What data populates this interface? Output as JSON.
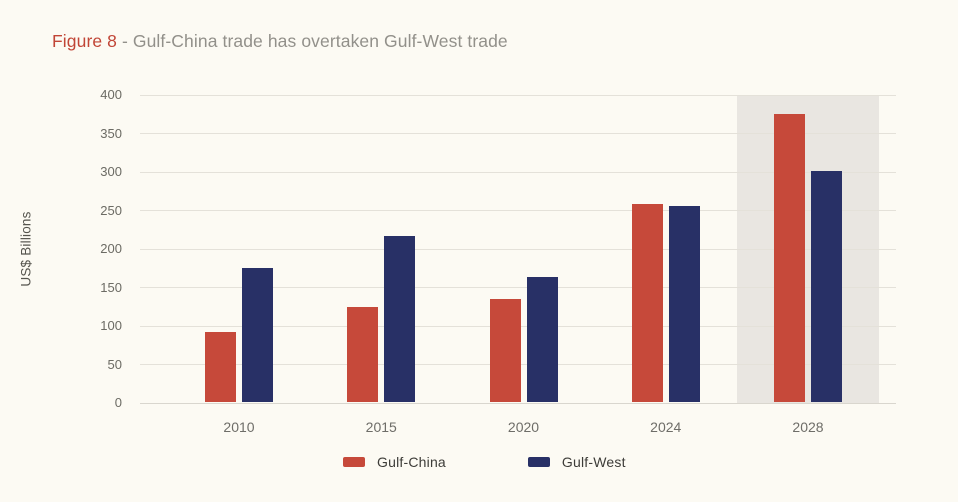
{
  "title": {
    "figure_label": "Figure 8",
    "text": "- Gulf-China trade has overtaken Gulf-West trade"
  },
  "chart_data": {
    "type": "bar",
    "categories": [
      "2010",
      "2015",
      "2020",
      "2024",
      "2028"
    ],
    "series": [
      {
        "name": "Gulf-China",
        "color": "#c6493a",
        "values": [
          92,
          125,
          135,
          258,
          375
        ]
      },
      {
        "name": "Gulf-West",
        "color": "#283066",
        "values": [
          175,
          217,
          164,
          256,
          301
        ]
      }
    ],
    "ylabel": "US$ Billions",
    "ylim": [
      0,
      400
    ],
    "yticks": [
      0,
      50,
      100,
      150,
      200,
      250,
      300,
      350,
      400
    ],
    "grid": true,
    "legend_position": "bottom",
    "highlight_band": {
      "category": "2028",
      "color": "#e9e6e1"
    }
  },
  "legend": {
    "items": [
      {
        "label": "Gulf-China",
        "color": "#c6493a"
      },
      {
        "label": "Gulf-West",
        "color": "#283066"
      }
    ]
  },
  "colors": {
    "background": "#fcfaf3",
    "title_accent": "#c14536",
    "title_text": "#92908a",
    "gridline": "#e4e1d9",
    "axis_text": "#6c6b64"
  }
}
